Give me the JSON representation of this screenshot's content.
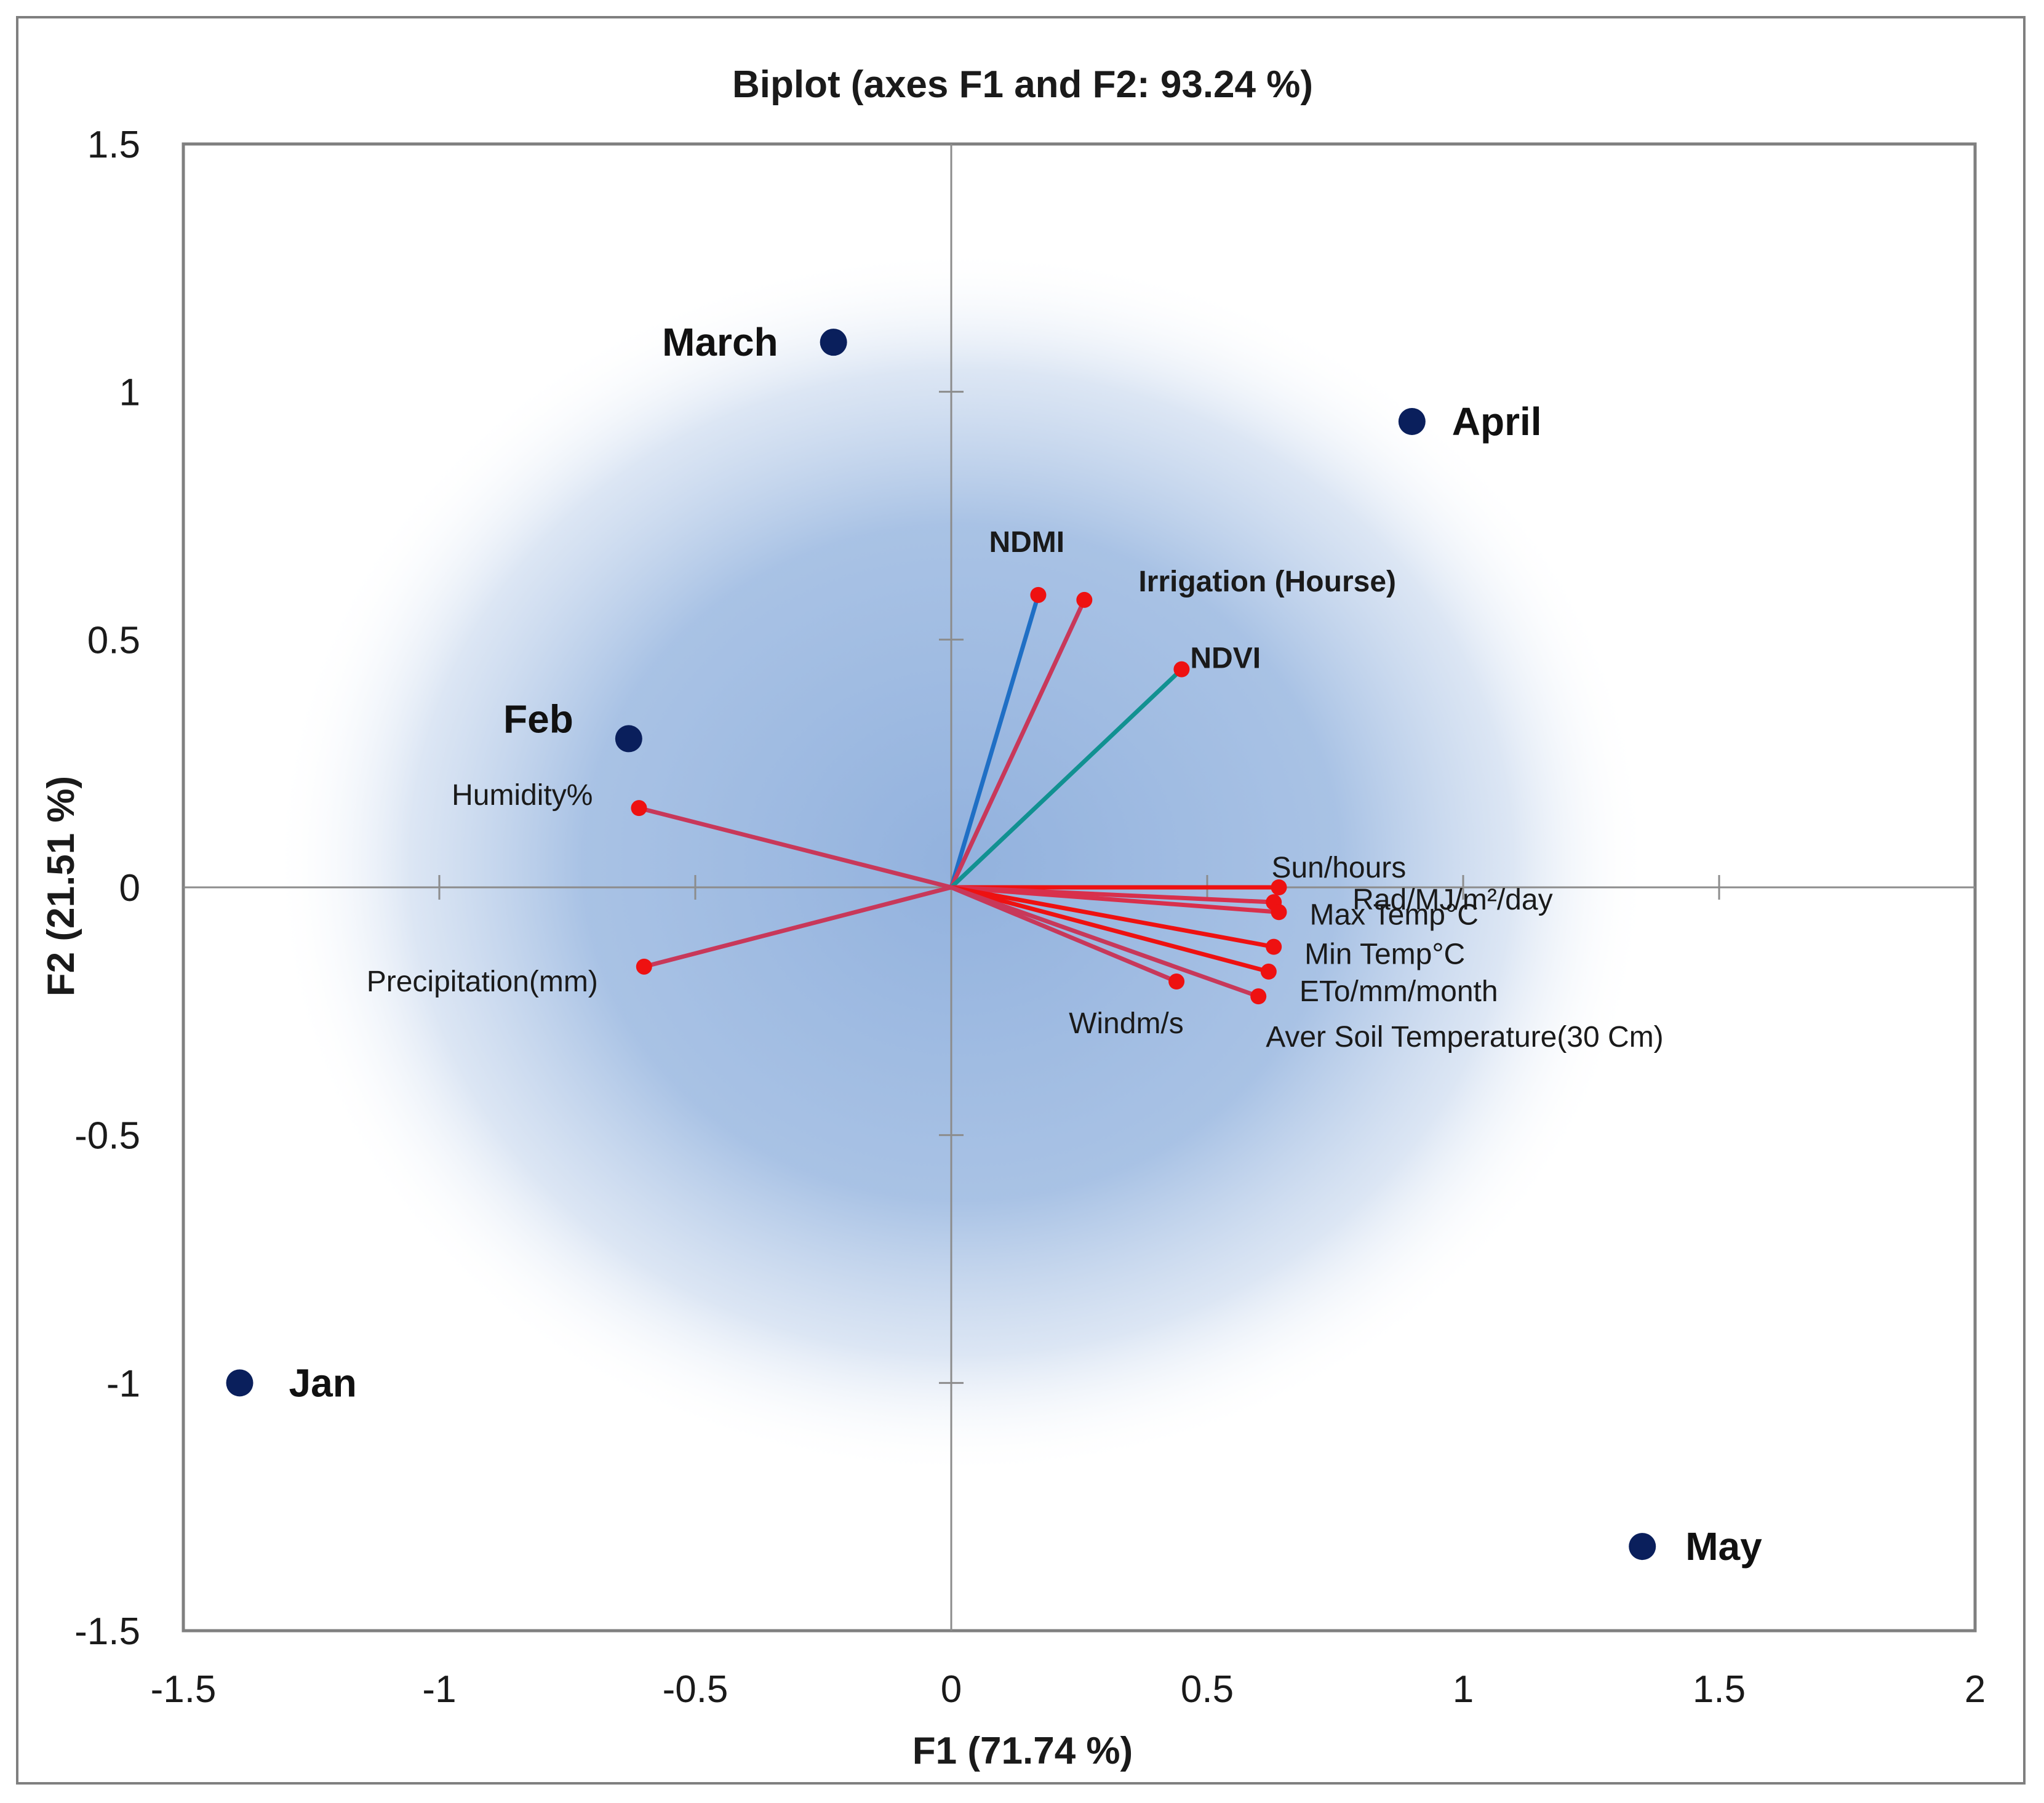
{
  "chart_data": {
    "type": "scatter",
    "subtype": "pca-biplot",
    "title": "Biplot (axes F1 and F2: 93.24 %)",
    "xlabel": "F1 (71.74 %)",
    "ylabel": "F2 (21.51 %)",
    "xlim": [
      -1.5,
      2
    ],
    "ylim": [
      -1.5,
      1.5
    ],
    "xticks": [
      -1.5,
      -1,
      -0.5,
      0,
      0.5,
      1,
      1.5,
      2
    ],
    "yticks": [
      -1.5,
      -1,
      -0.5,
      0,
      0.5,
      1,
      1.5
    ],
    "xtick_labels": [
      "-1.5",
      "-1",
      "-0.5",
      "0",
      "0.5",
      "1",
      "1.5",
      "2"
    ],
    "ytick_labels": [
      "-1.5",
      "-1",
      "-0.5",
      "0",
      "0.5",
      "1",
      "1.5"
    ],
    "observations": [
      {
        "name": "Jan",
        "x": -1.39,
        "y": -1.0
      },
      {
        "name": "Feb",
        "x": -0.63,
        "y": 0.3
      },
      {
        "name": "March",
        "x": -0.23,
        "y": 1.1
      },
      {
        "name": "April",
        "x": 0.9,
        "y": 0.94
      },
      {
        "name": "May",
        "x": 1.35,
        "y": -1.33
      }
    ],
    "variables": [
      {
        "name": "NDMI",
        "x": 0.17,
        "y": 0.59,
        "color": "#1f6fc5",
        "bold": true
      },
      {
        "name": "Irrigation (Hourse)",
        "x": 0.26,
        "y": 0.58,
        "color": "#c8385a",
        "bold": true
      },
      {
        "name": "NDVI",
        "x": 0.45,
        "y": 0.44,
        "color": "#119191",
        "bold": true
      },
      {
        "name": "Humidity%",
        "x": -0.61,
        "y": 0.16,
        "color": "#c8385a",
        "bold": false
      },
      {
        "name": "Precipitation(mm)",
        "x": -0.6,
        "y": -0.16,
        "color": "#c8385a",
        "bold": false
      },
      {
        "name": "Sun/hours",
        "x": 0.64,
        "y": 0.0,
        "color": "#ee1111",
        "bold": false
      },
      {
        "name": "Rad/MJ/m²/day",
        "x": 0.63,
        "y": -0.03,
        "color": "#d8304c",
        "bold": false
      },
      {
        "name": "Max Temp°C",
        "x": 0.64,
        "y": -0.05,
        "color": "#d8304c",
        "bold": false
      },
      {
        "name": "Min Temp°C",
        "x": 0.63,
        "y": -0.12,
        "color": "#ee1111",
        "bold": false
      },
      {
        "name": "ETo/mm/month",
        "x": 0.62,
        "y": -0.17,
        "color": "#ee1111",
        "bold": false
      },
      {
        "name": "Aver Soil Temperature(30 Cm)",
        "x": 0.6,
        "y": -0.22,
        "color": "#c8385a",
        "bold": false
      },
      {
        "name": "Windm/s",
        "x": 0.44,
        "y": -0.19,
        "color": "#c8385a",
        "bold": false
      }
    ],
    "colors": {
      "observation_marker": "#0a1f5c",
      "variable_endpoint": "#ee1111",
      "frame": "#7f7f7f",
      "axis": "#8c8c8c",
      "gradient_center": "#7fa4d8"
    }
  }
}
